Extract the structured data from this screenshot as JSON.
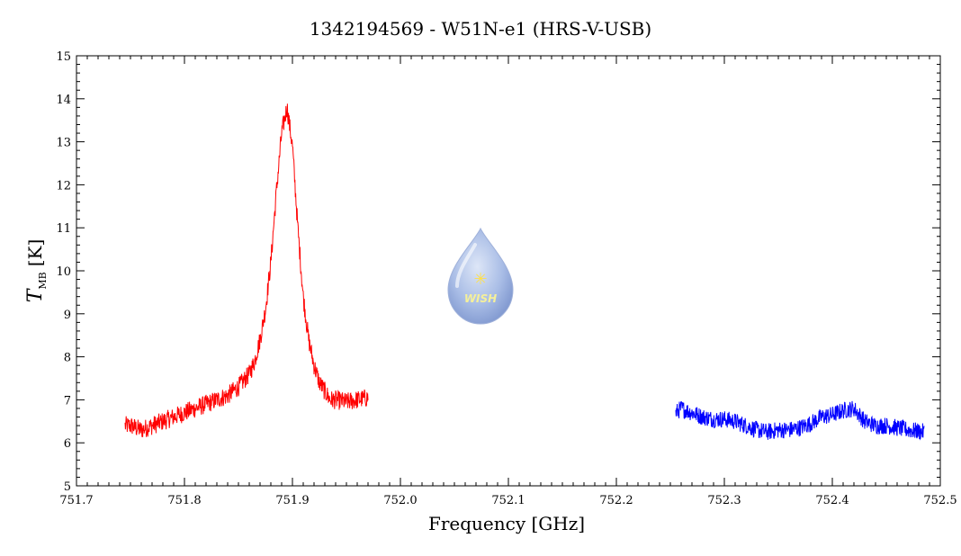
{
  "chart_data": {
    "type": "line",
    "title": "1342194569 - W51N-e1 (HRS-V-USB)",
    "xlabel": "Frequency [GHz]",
    "ylabel_symbol": "T",
    "ylabel_subscript": "MB",
    "ylabel_unit": "[K]",
    "xlim": [
      751.7,
      752.5
    ],
    "ylim": [
      5,
      15
    ],
    "x_ticks": [
      "751.7",
      "751.8",
      "751.9",
      "752.0",
      "752.1",
      "752.2",
      "752.3",
      "752.4",
      "752.5"
    ],
    "y_ticks": [
      "5",
      "6",
      "7",
      "8",
      "9",
      "10",
      "11",
      "12",
      "13",
      "14",
      "15"
    ],
    "grid": false,
    "legend": "none",
    "logo": {
      "text": "WISH",
      "description": "teardrop logo"
    },
    "series": [
      {
        "color": "#ff0000",
        "x": [
          751.745,
          751.75,
          751.76,
          751.77,
          751.78,
          751.79,
          751.8,
          751.81,
          751.82,
          751.83,
          751.84,
          751.85,
          751.86,
          751.865,
          751.87,
          751.875,
          751.88,
          751.885,
          751.89,
          751.895,
          751.9,
          751.905,
          751.91,
          751.915,
          751.92,
          751.925,
          751.93,
          751.935,
          751.94,
          751.95,
          751.96,
          751.97
        ],
        "y": [
          6.4,
          6.4,
          6.3,
          6.4,
          6.5,
          6.6,
          6.7,
          6.8,
          6.9,
          7.0,
          7.1,
          7.3,
          7.6,
          7.9,
          8.4,
          9.1,
          10.2,
          11.8,
          13.2,
          13.8,
          12.9,
          11.0,
          9.4,
          8.4,
          7.8,
          7.4,
          7.2,
          7.0,
          7.0,
          6.95,
          7.0,
          7.05
        ],
        "noise": 0.22
      },
      {
        "color": "#0000ff",
        "x": [
          752.255,
          752.26,
          752.27,
          752.28,
          752.29,
          752.3,
          752.31,
          752.32,
          752.33,
          752.34,
          752.35,
          752.36,
          752.37,
          752.38,
          752.39,
          752.4,
          752.41,
          752.42,
          752.43,
          752.44,
          752.45,
          752.46,
          752.47,
          752.485
        ],
        "y": [
          6.7,
          6.8,
          6.7,
          6.6,
          6.55,
          6.55,
          6.5,
          6.4,
          6.3,
          6.25,
          6.3,
          6.3,
          6.35,
          6.45,
          6.6,
          6.65,
          6.75,
          6.8,
          6.5,
          6.4,
          6.4,
          6.35,
          6.3,
          6.25
        ],
        "noise": 0.2
      }
    ]
  }
}
